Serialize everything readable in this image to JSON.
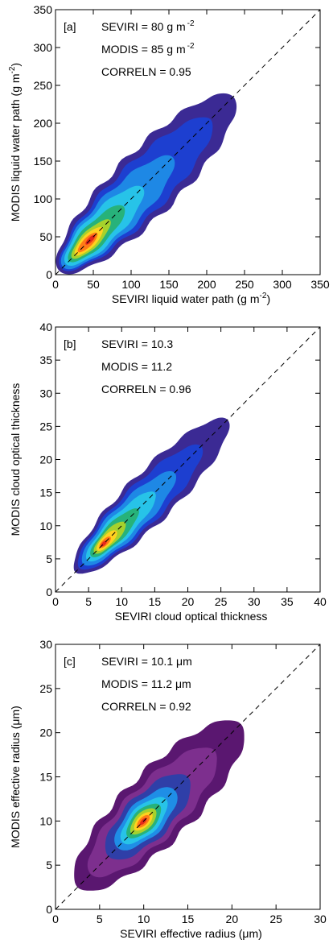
{
  "chart_data": [
    {
      "type": "heatmap",
      "panel_label": "[a]",
      "xlabel_main": "SEVIRI liquid water path (g m",
      "xlabel_sup": "-2",
      "xlabel_end": ")",
      "ylabel_main": "MODIS liquid water path (g m",
      "ylabel_sup": "-2",
      "ylabel_end": ")",
      "xlim": [
        0,
        350
      ],
      "ylim": [
        0,
        350
      ],
      "xticks": [
        0,
        50,
        100,
        150,
        200,
        250,
        300,
        350
      ],
      "yticks": [
        0,
        50,
        100,
        150,
        200,
        250,
        300,
        350
      ],
      "one_to_one_line": true,
      "annotations": [
        {
          "main": "SEVIRI = 80 g m",
          "sup": "-2"
        },
        {
          "main": "MODIS = 85 g m",
          "sup": "-2"
        },
        {
          "main": "CORRELN =  0.95",
          "sup": ""
        }
      ],
      "density_levels": [
        {
          "level": 1,
          "color": "#3b2a94",
          "length": [
            5,
            235
          ],
          "width": 30
        },
        {
          "level": 2,
          "color": "#1d3fd0",
          "length": [
            8,
            205
          ],
          "width": 24
        },
        {
          "level": 3,
          "color": "#1e88e5",
          "length": [
            10,
            155
          ],
          "width": 19
        },
        {
          "level": 4,
          "color": "#27c3e8",
          "length": [
            14,
            115
          ],
          "width": 15
        },
        {
          "level": 5,
          "color": "#27b27a",
          "length": [
            18,
            90
          ],
          "width": 11
        },
        {
          "level": 6,
          "color": "#a6d12c",
          "length": [
            22,
            72
          ],
          "width": 8
        },
        {
          "level": 7,
          "color": "#ffd21f",
          "length": [
            26,
            62
          ],
          "width": 6
        },
        {
          "level": 8,
          "color": "#ff7a17",
          "length": [
            30,
            55
          ],
          "width": 4
        },
        {
          "level": 9,
          "color": "#e4281c",
          "length": [
            40,
            52
          ],
          "width": 2
        }
      ]
    },
    {
      "type": "heatmap",
      "panel_label": "[b]",
      "xlabel_main": "SEVIRI cloud optical thickness",
      "xlabel_sup": "",
      "xlabel_end": "",
      "ylabel_main": "MODIS cloud optical thickness",
      "ylabel_sup": "",
      "ylabel_end": "",
      "xlim": [
        0,
        40
      ],
      "ylim": [
        0,
        40
      ],
      "xticks": [
        0,
        5,
        10,
        15,
        20,
        25,
        30,
        35,
        40
      ],
      "yticks": [
        0,
        5,
        10,
        15,
        20,
        25,
        30,
        35,
        40
      ],
      "one_to_one_line": true,
      "annotations": [
        {
          "main": "SEVIRI = 10.3",
          "sup": ""
        },
        {
          "main": "MODIS = 11.2",
          "sup": ""
        },
        {
          "main": "CORRELN =  0.96",
          "sup": ""
        }
      ],
      "density_levels": [
        {
          "level": 1,
          "color": "#3b2a94",
          "length": [
            3,
            26
          ],
          "width": 2.6
        },
        {
          "level": 2,
          "color": "#1d3fd0",
          "length": [
            3.6,
            22
          ],
          "width": 2.1
        },
        {
          "level": 3,
          "color": "#1e88e5",
          "length": [
            4.2,
            18
          ],
          "width": 1.7
        },
        {
          "level": 4,
          "color": "#27c3e8",
          "length": [
            4.8,
            15
          ],
          "width": 1.3
        },
        {
          "level": 5,
          "color": "#27b27a",
          "length": [
            5.4,
            12.5
          ],
          "width": 1.0
        },
        {
          "level": 6,
          "color": "#a6d12c",
          "length": [
            5.9,
            10.5
          ],
          "width": 0.75
        },
        {
          "level": 7,
          "color": "#ffd21f",
          "length": [
            6.3,
            9.2
          ],
          "width": 0.55
        },
        {
          "level": 8,
          "color": "#ff7a17",
          "length": [
            6.7,
            8.3
          ],
          "width": 0.35
        },
        {
          "level": 9,
          "color": "#e4281c",
          "length": [
            6.9,
            7.7
          ],
          "width": 0.2
        }
      ]
    },
    {
      "type": "heatmap",
      "panel_label": "[c]",
      "xlabel_main": "SEVIRI effective radius (",
      "xlabel_mu": "μm",
      "xlabel_end": ")",
      "ylabel_main": "MODIS effective radius (",
      "ylabel_mu": "μm",
      "ylabel_end": ")",
      "xlim": [
        0,
        30
      ],
      "ylim": [
        0,
        30
      ],
      "xticks": [
        0,
        5,
        10,
        15,
        20,
        25,
        30
      ],
      "yticks": [
        0,
        5,
        10,
        15,
        20,
        25,
        30
      ],
      "one_to_one_line": true,
      "annotations": [
        {
          "main": "SEVIRI = 10.1 μm",
          "sup": ""
        },
        {
          "main": "MODIS = 11.2 μm",
          "sup": ""
        },
        {
          "main": "CORRELN =  0.92",
          "sup": ""
        }
      ],
      "density_levels": [
        {
          "level": 1,
          "color": "#5a1770",
          "length": [
            2.5,
            21
          ],
          "width": 2.8
        },
        {
          "level": 2,
          "color": "#7d2f8e",
          "length": [
            4,
            18
          ],
          "width": 2.2
        },
        {
          "level": 3,
          "color": "#2f3fa8",
          "length": [
            6,
            15
          ],
          "width": 1.8
        },
        {
          "level": 4,
          "color": "#1f8ee6",
          "length": [
            7,
            13.5
          ],
          "width": 1.4
        },
        {
          "level": 5,
          "color": "#27c3e8",
          "length": [
            7.6,
            12.5
          ],
          "width": 1.1
        },
        {
          "level": 6,
          "color": "#27b27a",
          "length": [
            8.2,
            11.8
          ],
          "width": 0.85
        },
        {
          "level": 7,
          "color": "#a6d12c",
          "length": [
            8.6,
            11.3
          ],
          "width": 0.65
        },
        {
          "level": 8,
          "color": "#ffd21f",
          "length": [
            9,
            10.9
          ],
          "width": 0.45
        },
        {
          "level": 9,
          "color": "#ff7a17",
          "length": [
            9.3,
            10.6
          ],
          "width": 0.3
        },
        {
          "level": 10,
          "color": "#e4281c",
          "length": [
            9.6,
            10.3
          ],
          "width": 0.15
        }
      ]
    }
  ]
}
